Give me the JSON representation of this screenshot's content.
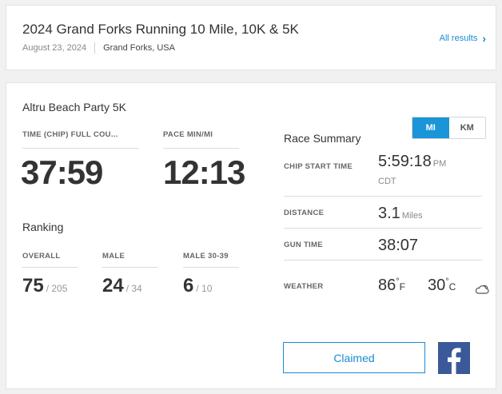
{
  "event": {
    "title": "2024 Grand Forks Running 10 Mile, 10K & 5K",
    "date": "August 23, 2024",
    "location": "Grand Forks, USA",
    "all_results_label": "All results"
  },
  "result": {
    "race_name": "Altru Beach Party 5K",
    "time_label": "TIME (CHIP) FULL COU...",
    "time_value": "37:59",
    "pace_label": "PACE MIN/MI",
    "pace_value": "12:13"
  },
  "ranking": {
    "heading": "Ranking",
    "items": [
      {
        "label": "OVERALL",
        "value": "75",
        "total": "/ 205"
      },
      {
        "label": "MALE",
        "value": "24",
        "total": "/ 34"
      },
      {
        "label": "MALE 30-39",
        "value": "6",
        "total": "/ 10"
      }
    ]
  },
  "summary": {
    "heading": "Race Summary",
    "units": {
      "options": [
        "MI",
        "KM"
      ],
      "selected": "MI"
    },
    "chip_start": {
      "label": "CHIP START TIME",
      "value": "5:59:18",
      "suffix": "PM",
      "timezone": "CDT"
    },
    "distance": {
      "label": "DISTANCE",
      "value": "3.1",
      "unit": "Miles"
    },
    "gun_time": {
      "label": "GUN TIME",
      "value": "38:07"
    },
    "weather": {
      "label": "WEATHER",
      "temp_f": "86",
      "unit_f": "F",
      "temp_c": "30",
      "unit_c": "C",
      "icon": "partly-cloudy-icon",
      "deg": "°"
    }
  },
  "actions": {
    "claimed_label": "Claimed",
    "facebook_icon": "facebook-icon"
  },
  "colors": {
    "accent": "#1a95d8",
    "link": "#1a8bd6",
    "facebook": "#3b5998"
  }
}
